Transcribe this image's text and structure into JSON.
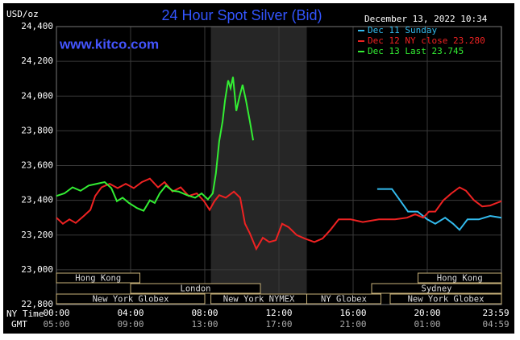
{
  "chart_data": {
    "type": "line",
    "title": "24 Hour Spot Silver (Bid)",
    "y_label": "USD/oz",
    "watermark": "www.kitco.com",
    "timestamp": "December 13, 2022 10:34",
    "x_row_labels": [
      "NY Time",
      "GMT"
    ],
    "xlim": [
      0,
      24
    ],
    "ylim": [
      22800,
      24400
    ],
    "grid": true,
    "xticks": [
      {
        "value": 0,
        "label": "00:00"
      },
      {
        "value": 4,
        "label": "04:00"
      },
      {
        "value": 8,
        "label": "08:00"
      },
      {
        "value": 12,
        "label": "12:00"
      },
      {
        "value": 16,
        "label": "16:00"
      },
      {
        "value": 20,
        "label": "20:00"
      },
      {
        "value": 23.983,
        "label": "23:59"
      }
    ],
    "gmt_labels": [
      "05:00",
      "09:00",
      "13:00",
      "17:00",
      "21:00",
      "01:00",
      "04:59"
    ],
    "yticks": [
      {
        "value": 22800,
        "label": "22,800"
      },
      {
        "value": 23000,
        "label": "23,000"
      },
      {
        "value": 23200,
        "label": "23,200"
      },
      {
        "value": 23400,
        "label": "23,400"
      },
      {
        "value": 23600,
        "label": "23,600"
      },
      {
        "value": 23800,
        "label": "23,800"
      },
      {
        "value": 24000,
        "label": "24,000"
      },
      {
        "value": 24200,
        "label": "24,200"
      },
      {
        "value": 24400,
        "label": "24,400"
      }
    ],
    "highlight": {
      "xlim": [
        8.33,
        13.5
      ],
      "color": "#262626"
    },
    "sessions": [
      {
        "label": "Hong Kong",
        "start": 0,
        "end": 4.5,
        "row": 0
      },
      {
        "label": "London",
        "start": 4,
        "end": 11,
        "row": 1
      },
      {
        "label": "New York Globex",
        "start": 0,
        "end": 8,
        "row": 2
      },
      {
        "label": "New York NYMEX",
        "start": 8.33,
        "end": 13.5,
        "row": 2
      },
      {
        "label": "NY Globex",
        "start": 13.5,
        "end": 17.5,
        "row": 2
      },
      {
        "label": "Sydney",
        "start": 17,
        "end": 24,
        "row": 1
      },
      {
        "label": "Hong Kong",
        "start": 19.5,
        "end": 24,
        "row": 0
      },
      {
        "label": "New York Globex",
        "start": 18,
        "end": 24,
        "row": 2
      }
    ],
    "series": [
      {
        "name": "Dec 11 Sunday",
        "color": "#33bbee",
        "x": [
          17.3,
          18.09,
          18.43,
          18.96,
          19.48,
          20,
          20.43,
          20.96,
          21.39,
          21.74,
          22.17,
          22.78,
          23.39,
          24
        ],
        "values": [
          23465,
          23465,
          23415,
          23335,
          23335,
          23290,
          23265,
          23300,
          23265,
          23230,
          23290,
          23290,
          23310,
          23300
        ]
      },
      {
        "name": "Dec 12 NY close 23.280",
        "color": "#ee2222",
        "x": [
          0,
          0.35,
          0.7,
          1.04,
          1.48,
          1.83,
          2.09,
          2.43,
          2.87,
          3.3,
          3.74,
          4.17,
          4.61,
          5.04,
          5.48,
          5.83,
          6.26,
          6.7,
          7.13,
          7.57,
          7.96,
          8.26,
          8.52,
          8.78,
          9.13,
          9.57,
          9.91,
          10.17,
          10.43,
          10.78,
          11.13,
          11.48,
          11.83,
          12.17,
          12.52,
          12.96,
          13.39,
          13.91,
          14.35,
          14.78,
          15.22,
          15.87,
          16.52,
          17.39,
          18.26,
          18.91,
          19.35,
          19.78,
          20.09,
          20.43,
          20.87,
          21.3,
          21.74,
          22.09,
          22.52,
          22.96,
          23.39,
          23.74,
          24
        ],
        "values": [
          23300,
          23265,
          23290,
          23270,
          23310,
          23345,
          23425,
          23475,
          23495,
          23470,
          23495,
          23470,
          23505,
          23525,
          23475,
          23505,
          23450,
          23475,
          23425,
          23440,
          23395,
          23345,
          23395,
          23430,
          23415,
          23450,
          23415,
          23265,
          23210,
          23120,
          23185,
          23160,
          23170,
          23265,
          23245,
          23200,
          23180,
          23160,
          23180,
          23230,
          23290,
          23290,
          23275,
          23290,
          23290,
          23300,
          23320,
          23300,
          23335,
          23335,
          23400,
          23440,
          23475,
          23455,
          23400,
          23365,
          23370,
          23385,
          23395
        ]
      },
      {
        "name": "Dec 13 Last 23.745",
        "color": "#33ee33",
        "x": [
          0,
          0.43,
          0.87,
          1.3,
          1.74,
          2.17,
          2.6,
          2.96,
          3.26,
          3.57,
          3.91,
          4.35,
          4.7,
          5.04,
          5.3,
          5.57,
          5.91,
          6.26,
          6.6,
          7.04,
          7.48,
          7.83,
          8.17,
          8.43,
          8.6,
          8.78,
          8.96,
          9.09,
          9.26,
          9.39,
          9.52,
          9.7,
          9.87,
          10.04,
          10.22,
          10.43,
          10.61
        ],
        "values": [
          23425,
          23440,
          23475,
          23455,
          23485,
          23495,
          23505,
          23470,
          23395,
          23415,
          23385,
          23355,
          23340,
          23400,
          23385,
          23440,
          23485,
          23455,
          23450,
          23430,
          23415,
          23440,
          23405,
          23440,
          23555,
          23740,
          23855,
          23975,
          24090,
          24045,
          24110,
          23915,
          23995,
          24065,
          23975,
          23855,
          23745
        ]
      }
    ]
  }
}
